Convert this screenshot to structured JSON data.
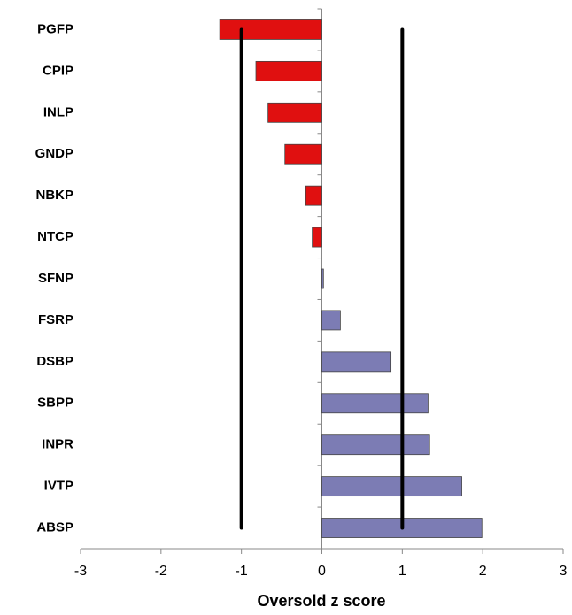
{
  "chart_data": {
    "type": "hbar",
    "x_label": "Oversold z score",
    "categories": [
      "PGFP",
      "CPIP",
      "INLP",
      "GNDP",
      "NBKP",
      "NTCP",
      "SFNP",
      "FSRP",
      "DSBP",
      "SBPP",
      "INPR",
      "IVTP",
      "ABSP"
    ],
    "values": [
      -1.27,
      -0.82,
      -0.67,
      -0.46,
      -0.2,
      -0.12,
      0.02,
      0.23,
      0.86,
      1.32,
      1.34,
      1.74,
      1.99
    ],
    "negative_color": "#e01010",
    "positive_color": "#7c7cb4",
    "xlim": [
      -3,
      3
    ],
    "xticks": [
      -3,
      -2,
      -1,
      0,
      1,
      2,
      3
    ],
    "reference_lines": [
      -1,
      1
    ]
  }
}
